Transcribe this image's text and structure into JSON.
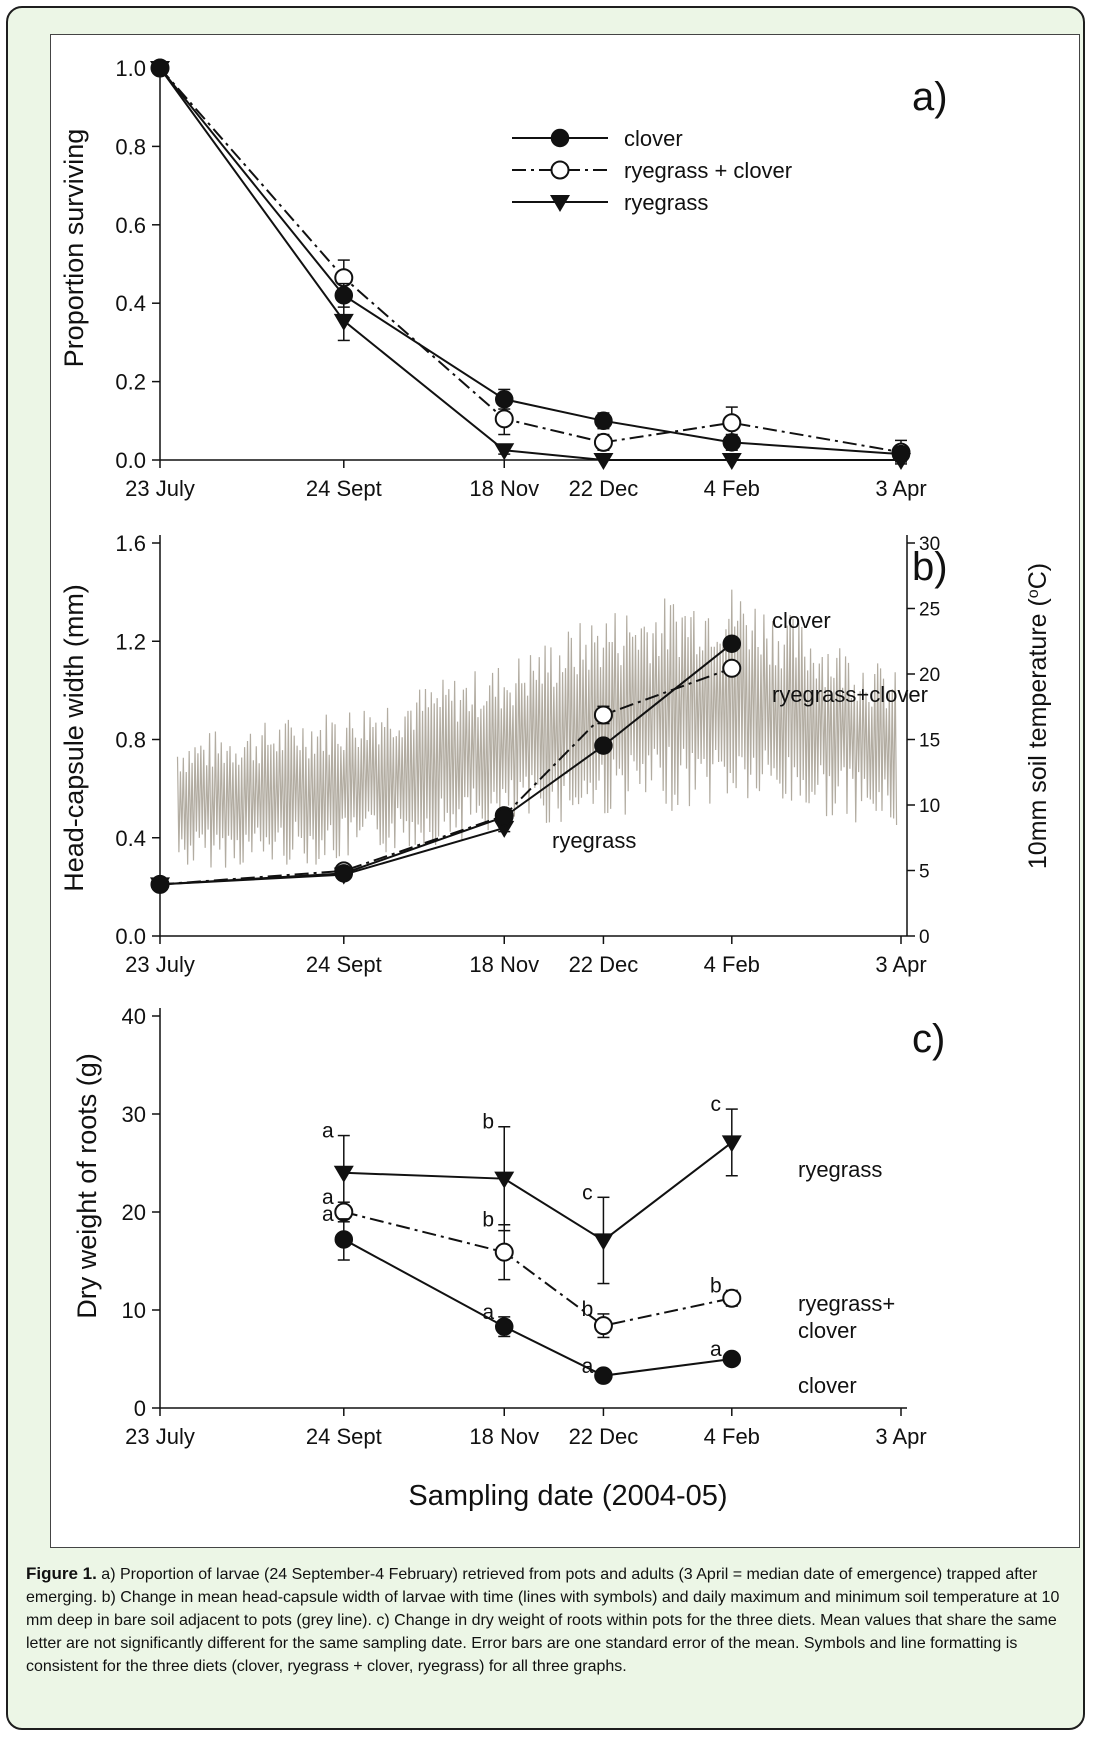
{
  "chart_data": [
    {
      "panel": "a)",
      "type": "line",
      "ylabel": "Proportion surviving",
      "ylim": [
        0.0,
        1.0
      ],
      "yticks": [
        "0.0",
        "0.2",
        "0.4",
        "0.6",
        "0.8",
        "1.0"
      ],
      "x_tick_labels": [
        "23 July",
        "24 Sept",
        "18 Nov",
        "22 Dec",
        "4 Feb",
        "3 Apr"
      ],
      "x": [
        "2004-07-23",
        "2004-09-24",
        "2004-11-18",
        "2004-12-22",
        "2005-02-04",
        "2005-04-03"
      ],
      "legend_position": "top-center",
      "series": [
        {
          "name": "clover",
          "marker": "filled-circle",
          "line": "solid",
          "values": [
            1.0,
            0.42,
            0.155,
            0.1,
            0.045,
            0.015
          ],
          "err": [
            0,
            0.03,
            0.025,
            0.02,
            0.02,
            0.02
          ]
        },
        {
          "name": "ryegrass + clover",
          "marker": "open-circle",
          "line": "dash-dot",
          "values": [
            1.0,
            0.465,
            0.105,
            0.045,
            0.095,
            0.02
          ],
          "err": [
            0,
            0.045,
            0.04,
            0.02,
            0.04,
            0.03
          ]
        },
        {
          "name": "ryegrass",
          "marker": "filled-triangle",
          "line": "solid",
          "values": [
            1.0,
            0.355,
            0.025,
            0.0,
            0.0,
            0.0
          ],
          "err": [
            0,
            0.05,
            0.01,
            0.0,
            0.0,
            0.0
          ]
        }
      ]
    },
    {
      "panel": "b)",
      "type": "line",
      "ylabel": "Head-capsule width (mm)",
      "ylim": [
        0.0,
        1.6
      ],
      "yticks": [
        "0.0",
        "0.4",
        "0.8",
        "1.2",
        "1.6"
      ],
      "y2label": "10mm soil temperature (°C)",
      "y2lim": [
        0,
        30
      ],
      "y2ticks": [
        "0",
        "5",
        "10",
        "15",
        "20",
        "25",
        "30"
      ],
      "x_tick_labels": [
        "23 July",
        "24 Sept",
        "18 Nov",
        "22 Dec",
        "4 Feb",
        "3 Apr"
      ],
      "x": [
        "2004-07-23",
        "2004-09-24",
        "2004-11-18",
        "2004-12-22",
        "2005-02-04"
      ],
      "series": [
        {
          "name": "clover",
          "marker": "filled-circle",
          "line": "solid",
          "values": [
            0.21,
            0.255,
            0.485,
            0.775,
            1.19
          ],
          "err": [
            0,
            0.01,
            0.01,
            0.015,
            0.015
          ]
        },
        {
          "name": "ryegrass+clover",
          "marker": "open-circle",
          "line": "dash-dot",
          "values": [
            0.21,
            0.265,
            0.49,
            0.9,
            1.09
          ],
          "err": [
            0,
            0.01,
            0.015,
            0.035,
            0.015
          ]
        },
        {
          "name": "ryegrass",
          "marker": "filled-triangle",
          "line": "solid",
          "values": [
            0.21,
            0.25,
            0.44,
            null,
            null
          ],
          "err": [
            0,
            0.01,
            0.015,
            0,
            0
          ]
        }
      ],
      "temperature_series": {
        "line_color": "#b2aca1",
        "trend_dates": [
          "2004-07-23",
          "2004-09-24",
          "2004-11-18",
          "2004-12-22",
          "2005-02-04",
          "2005-03-10",
          "2005-04-03"
        ],
        "trend_mid": [
          10,
          11.5,
          14.5,
          17,
          18.5,
          16,
          14
        ],
        "trend_amp": [
          5,
          6,
          6.5,
          8,
          8.5,
          7,
          6
        ]
      }
    },
    {
      "panel": "c)",
      "type": "line",
      "xlabel": "Sampling date (2004-05)",
      "ylabel": "Dry weight of roots (g)",
      "ylim": [
        0,
        40
      ],
      "yticks": [
        "0",
        "10",
        "20",
        "30",
        "40"
      ],
      "x_tick_labels": [
        "23 July",
        "24 Sept",
        "18 Nov",
        "22 Dec",
        "4 Feb",
        "3 Apr"
      ],
      "x": [
        "2004-09-24",
        "2004-11-18",
        "2004-12-22",
        "2005-02-04"
      ],
      "series": [
        {
          "name": "ryegrass",
          "marker": "filled-triangle",
          "line": "solid",
          "values": [
            24.0,
            23.4,
            17.1,
            27.1
          ],
          "err": [
            3.8,
            5.3,
            4.4,
            3.4
          ],
          "letters": [
            "a",
            "b",
            "c",
            "c"
          ]
        },
        {
          "name": "ryegrass+ clover",
          "marker": "open-circle",
          "line": "dash-dot",
          "values": [
            20.0,
            15.9,
            8.4,
            11.2
          ],
          "err": [
            1.0,
            2.8,
            1.2,
            0.8
          ],
          "letters": [
            "a",
            "b",
            "b",
            "b"
          ]
        },
        {
          "name": "clover",
          "marker": "filled-circle",
          "line": "solid",
          "values": [
            17.2,
            8.3,
            3.3,
            5.0
          ],
          "err": [
            2.1,
            1.0,
            0.5,
            0.5
          ],
          "letters": [
            "a",
            "a",
            "a",
            "a"
          ]
        }
      ]
    }
  ],
  "figure": {
    "panel_a": {
      "letter": "a)",
      "ylabel": "Proportion surviving",
      "legend": [
        "clover",
        "ryegrass + clover",
        "ryegrass"
      ]
    },
    "panel_b": {
      "letter": "b)",
      "ylabel": "Head-capsule width (mm)",
      "y2label_pre": "10mm soil temperature (",
      "y2label_sup": "o",
      "y2label_post": "C)",
      "labels": {
        "clover": "clover",
        "ryegrass_clover": "ryegrass+clover",
        "ryegrass": "ryegrass"
      }
    },
    "panel_c": {
      "letter": "c)",
      "ylabel": "Dry weight of roots (g)",
      "xlabel": "Sampling date (2004-05)",
      "labels": {
        "ryegrass": "ryegrass",
        "ryegrass_clover_1": "ryegrass+",
        "ryegrass_clover_2": "clover",
        "clover": "clover"
      }
    }
  },
  "caption": {
    "label": "Figure 1.",
    "text": " a) Proportion of larvae (24 September-4 February) retrieved from pots and adults (3 April = median date of emergence) trapped after emerging. b) Change in mean head-capsule width of larvae with time (lines with symbols) and daily maximum and minimum soil temperature at 10 mm deep in bare soil adjacent to pots (grey line). c) Change in dry weight of roots within pots for the three diets. Mean values that share the same letter are not significantly different for the same sampling date. Error bars are one standard error of the mean. Symbols and line formatting is consistent for the three diets (clover, ryegrass + clover, ryegrass) for all three graphs."
  }
}
